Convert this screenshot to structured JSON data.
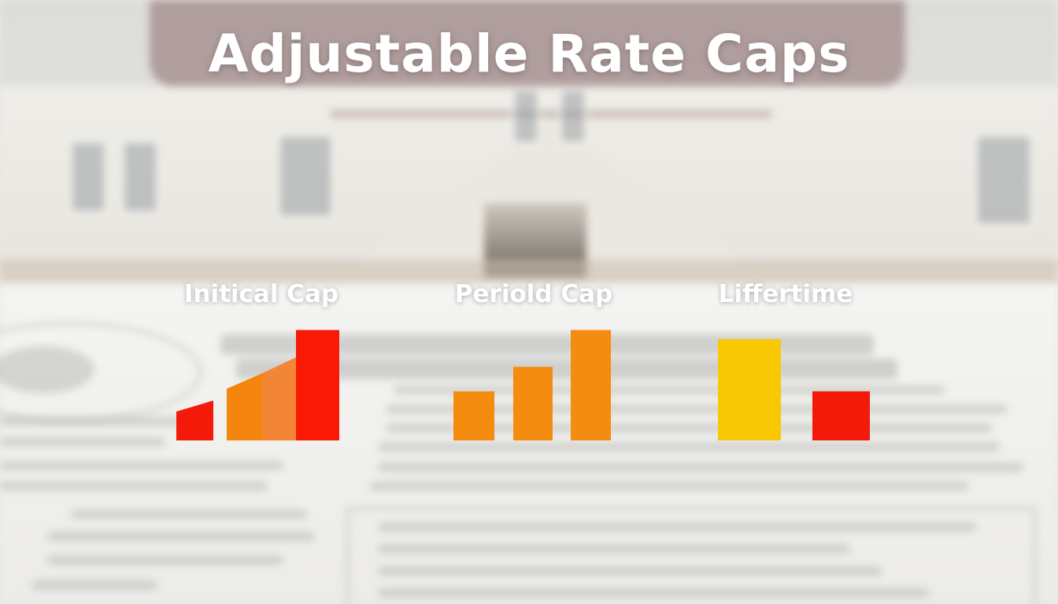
{
  "title": "Adjustable Rate Caps",
  "chart_data": [
    {
      "type": "bar",
      "label": "Initical Cap",
      "values": [
        13,
        22,
        22,
        36
      ],
      "colors": [
        "#f41a0a",
        "#f4850e",
        "#f28636",
        "#f81a05"
      ]
    },
    {
      "type": "bar",
      "label": "Periold Cap",
      "values": [
        16,
        24,
        36
      ],
      "colors": [
        "#f48c10",
        "#f48c10",
        "#f48c10"
      ]
    },
    {
      "type": "bar",
      "label": "Liffertime",
      "values": [
        33,
        16
      ],
      "colors": [
        "#f8c805",
        "#f41a0a"
      ]
    }
  ]
}
